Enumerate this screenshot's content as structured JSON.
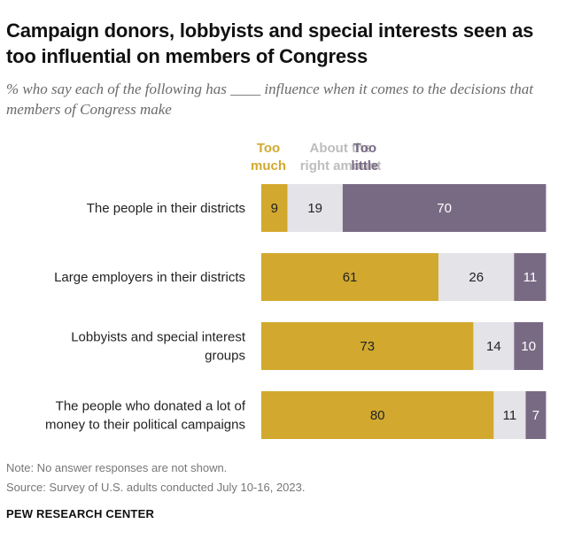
{
  "title": "Campaign donors, lobbyists and special interests seen as too influential on members of Congress",
  "subtitle": "% who say each of the following has ____ influence when it comes to the decisions that members of Congress make",
  "note": "Note: No answer responses are not shown.",
  "source": "Source: Survey of U.S. adults conducted July 10-16, 2023.",
  "brand": "PEW RESEARCH CENTER",
  "colors": {
    "too_much": "#D2A92E",
    "about_right": "#E3E3E8",
    "too_little": "#796A84"
  },
  "chart_data": {
    "type": "bar",
    "orientation": "horizontal",
    "stacked": true,
    "categories": [
      [
        "The people in their districts"
      ],
      [
        "Large employers in their districts"
      ],
      [
        "Lobbyists and special interest",
        "groups"
      ],
      [
        "The people who donated a lot of",
        "money to their political campaigns"
      ]
    ],
    "series": [
      {
        "name": [
          "Too",
          "much"
        ],
        "key": "too_much",
        "values": [
          9,
          61,
          73,
          80
        ]
      },
      {
        "name": [
          "About the",
          "right amount"
        ],
        "key": "about_right",
        "values": [
          19,
          26,
          14,
          11
        ]
      },
      {
        "name": [
          "Too",
          "little"
        ],
        "key": "too_little",
        "values": [
          70,
          11,
          10,
          7
        ]
      }
    ],
    "xlim": [
      0,
      100
    ],
    "grid": false,
    "legend": "top"
  }
}
